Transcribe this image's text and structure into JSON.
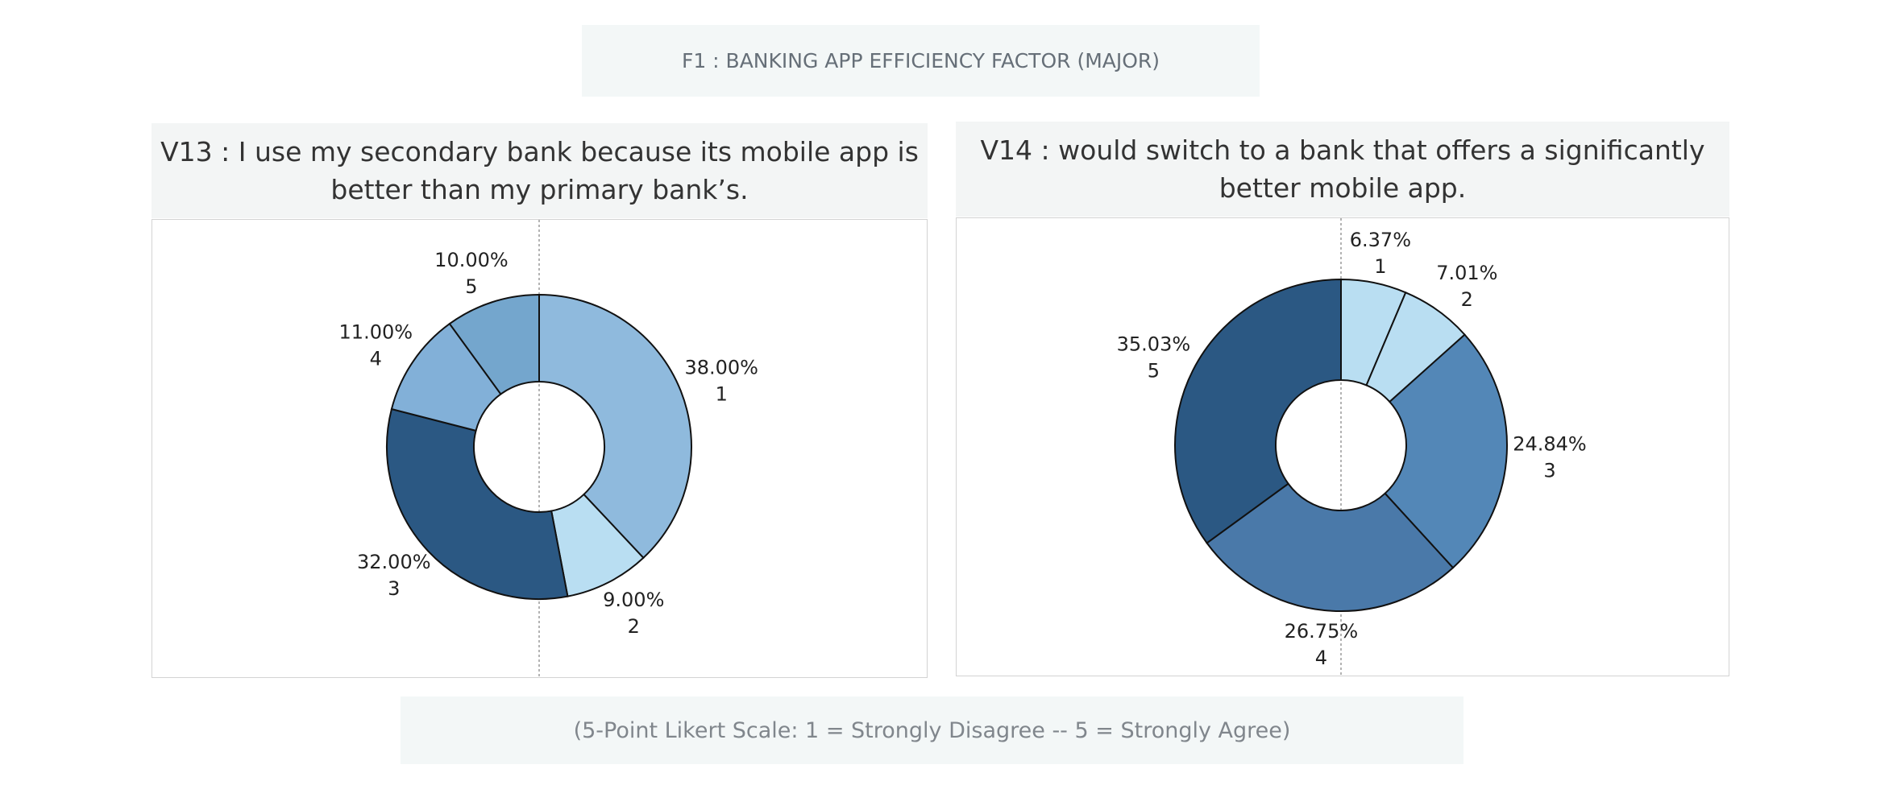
{
  "header": {
    "title": "F1 : BANKING APP EFFICIENCY FACTOR (MAJOR)"
  },
  "footer": {
    "note": "(5-Point Likert Scale: 1 = Strongly Disagree -- 5 = Strongly Agree)"
  },
  "chart_data": [
    {
      "type": "pie",
      "donut": true,
      "title": "V13 : I use my secondary bank because its mobile app is better than my primary bank’s.",
      "slices": [
        {
          "category": "1",
          "value": 38.0,
          "label": "38.00%",
          "color": "#8fbadd"
        },
        {
          "category": "2",
          "value": 9.0,
          "label": "9.00%",
          "color": "#b9def2"
        },
        {
          "category": "3",
          "value": 32.0,
          "label": "32.00%",
          "color": "#2b5883"
        },
        {
          "category": "4",
          "value": 11.0,
          "label": "11.00%",
          "color": "#82b0d8"
        },
        {
          "category": "5",
          "value": 10.0,
          "label": "10.00%",
          "color": "#74a6cd"
        }
      ]
    },
    {
      "type": "pie",
      "donut": true,
      "title": "V14 : would switch to a bank that offers a significantly better mobile app.",
      "slices": [
        {
          "category": "1",
          "value": 6.37,
          "label": "6.37%",
          "color": "#b9def2"
        },
        {
          "category": "2",
          "value": 7.01,
          "label": "7.01%",
          "color": "#b9def2"
        },
        {
          "category": "3",
          "value": 24.84,
          "label": "24.84%",
          "color": "#5387b7"
        },
        {
          "category": "4",
          "value": 26.75,
          "label": "26.75%",
          "color": "#4a79a9"
        },
        {
          "category": "5",
          "value": 35.03,
          "label": "35.03%",
          "color": "#2b5883"
        }
      ]
    }
  ]
}
